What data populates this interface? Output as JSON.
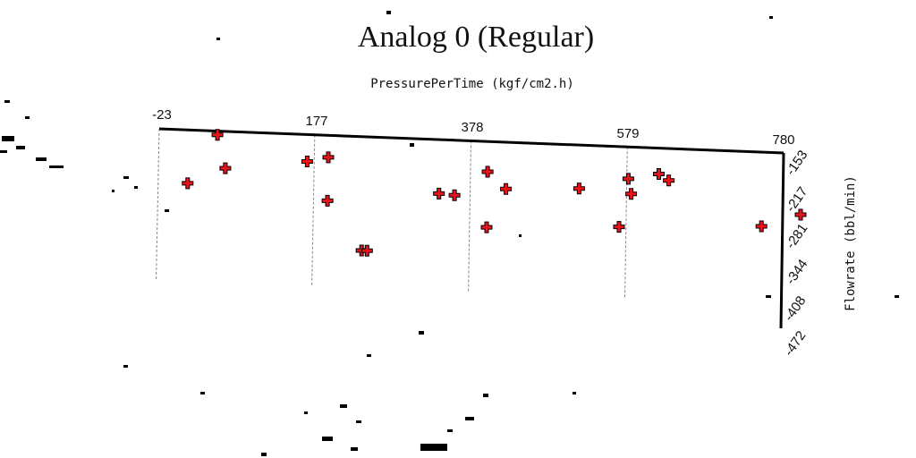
{
  "chart_data": {
    "type": "scatter",
    "title": "Analog 0 (Regular)",
    "xlabel": "PressurePerTime (kgf/cm2.h)",
    "ylabel": "Flowrate (bbl/min)",
    "xlim": [
      -23,
      780
    ],
    "ylim": [
      -153,
      -472
    ],
    "x_ticks": [
      "-23",
      "177",
      "378",
      "579",
      "780"
    ],
    "y_ticks": [
      "-153",
      "-217",
      "-281",
      "-344",
      "-408",
      "-472"
    ],
    "x_axis_position": "top",
    "y_axis_position": "right",
    "grid": "vertical dashed lines at x ticks",
    "marker": "plus",
    "marker_color": "#e8141b",
    "series": [
      {
        "points": [
          {
            "x": 52,
            "y": -160
          },
          {
            "x": 15,
            "y": -250
          },
          {
            "x": 63,
            "y": -220
          },
          {
            "x": 168,
            "y": -202
          },
          {
            "x": 195,
            "y": -193
          },
          {
            "x": 195,
            "y": -272
          },
          {
            "x": 240,
            "y": -360
          },
          {
            "x": 247,
            "y": -360
          },
          {
            "x": 338,
            "y": -251
          },
          {
            "x": 358,
            "y": -253
          },
          {
            "x": 400,
            "y": -309
          },
          {
            "x": 400,
            "y": -208
          },
          {
            "x": 424,
            "y": -238
          },
          {
            "x": 518,
            "y": -232
          },
          {
            "x": 570,
            "y": -299
          },
          {
            "x": 581,
            "y": -211
          },
          {
            "x": 585,
            "y": -238
          },
          {
            "x": 620,
            "y": -200
          },
          {
            "x": 633,
            "y": -211
          },
          {
            "x": 753,
            "y": -288
          },
          {
            "x": 803,
            "y": -264
          }
        ]
      }
    ]
  }
}
